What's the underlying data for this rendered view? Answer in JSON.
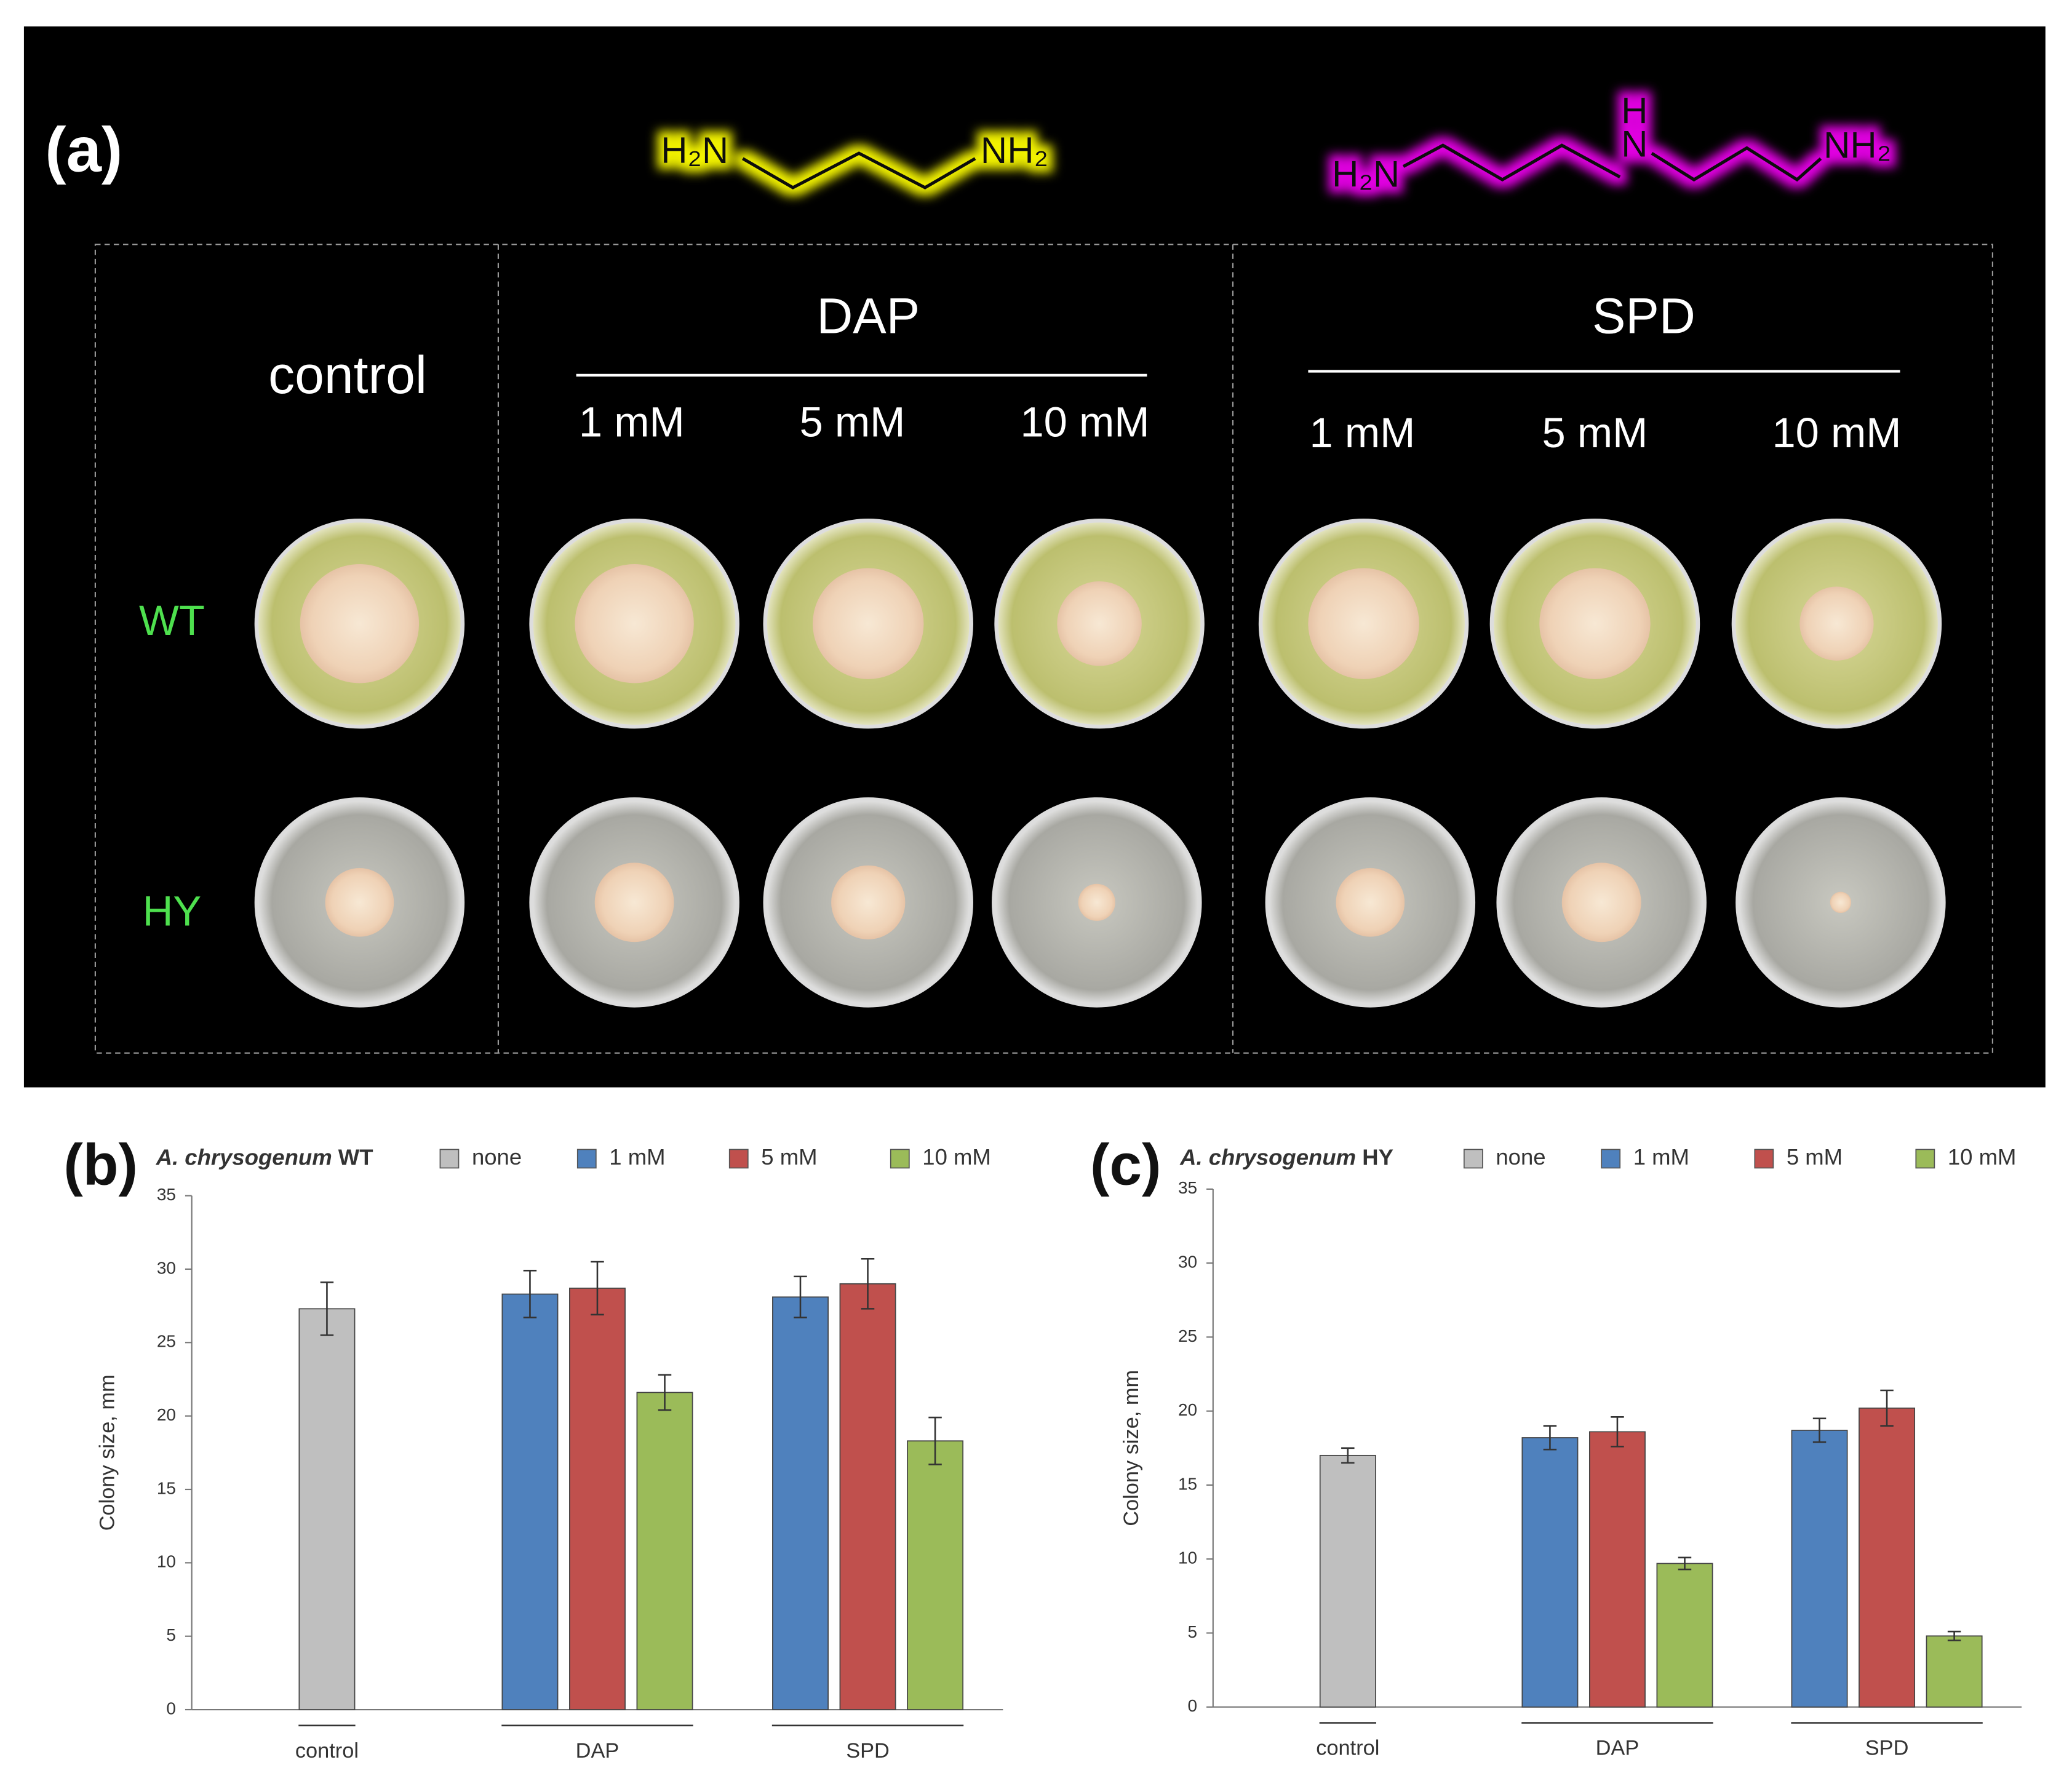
{
  "panel_a": {
    "label": "(a)",
    "formulas": {
      "dap": {
        "left": "H₂N",
        "right": "NH₂"
      },
      "spd": {
        "left": "H₂N",
        "middle_h": "H",
        "middle_n": "N",
        "right": "NH₂"
      }
    },
    "column_labels": {
      "control": "control",
      "dap": "DAP",
      "spd": "SPD"
    },
    "dap_concentrations": [
      "1 mM",
      "5 mM",
      "10 mM"
    ],
    "spd_concentrations": [
      "1 mM",
      "5 mM",
      "10 mM"
    ],
    "row_labels": [
      "WT",
      "HY"
    ]
  },
  "chart_data": [
    {
      "type": "bar",
      "panel_label": "(b)",
      "title": {
        "species": "A. chrysogenum",
        "strain": "WT"
      },
      "ylabel": "Colony size, mm",
      "categories": [
        "control",
        "DAP",
        "SPD"
      ],
      "series": [
        {
          "name": "none",
          "color": "#bfbfbf",
          "values": [
            27.3,
            null,
            null
          ],
          "errors": [
            1.8,
            null,
            null
          ]
        },
        {
          "name": "1 mM",
          "color": "#4f81bd",
          "values": [
            null,
            28.3,
            28.1
          ],
          "errors": [
            null,
            1.6,
            1.4
          ]
        },
        {
          "name": "5 mM",
          "color": "#c0504d",
          "values": [
            null,
            28.7,
            29.0
          ],
          "errors": [
            null,
            1.8,
            1.7
          ]
        },
        {
          "name": "10 mM",
          "color": "#9bbb59",
          "values": [
            null,
            21.6,
            18.3
          ],
          "errors": [
            null,
            1.2,
            1.6
          ]
        }
      ],
      "ylim": [
        0,
        35
      ],
      "yticks": [
        0,
        5,
        10,
        15,
        20,
        25,
        30,
        35
      ],
      "grid": false
    },
    {
      "type": "bar",
      "panel_label": "(c)",
      "title": {
        "species": "A. chrysogenum",
        "strain": "HY"
      },
      "ylabel": "Colony size, mm",
      "categories": [
        "control",
        "DAP",
        "SPD"
      ],
      "series": [
        {
          "name": "none",
          "color": "#bfbfbf",
          "values": [
            17.0,
            null,
            null
          ],
          "errors": [
            0.5,
            null,
            null
          ]
        },
        {
          "name": "1 mM",
          "color": "#4f81bd",
          "values": [
            null,
            18.2,
            18.7
          ],
          "errors": [
            null,
            0.8,
            0.8
          ]
        },
        {
          "name": "5 mM",
          "color": "#c0504d",
          "values": [
            null,
            18.6,
            20.2
          ],
          "errors": [
            null,
            1.0,
            1.2
          ]
        },
        {
          "name": "10 mM",
          "color": "#9bbb59",
          "values": [
            null,
            9.7,
            4.8
          ],
          "errors": [
            null,
            0.4,
            0.3
          ]
        }
      ],
      "ylim": [
        0,
        35
      ],
      "yticks": [
        0,
        5,
        10,
        15,
        20,
        25,
        30,
        35
      ],
      "grid": false
    }
  ]
}
